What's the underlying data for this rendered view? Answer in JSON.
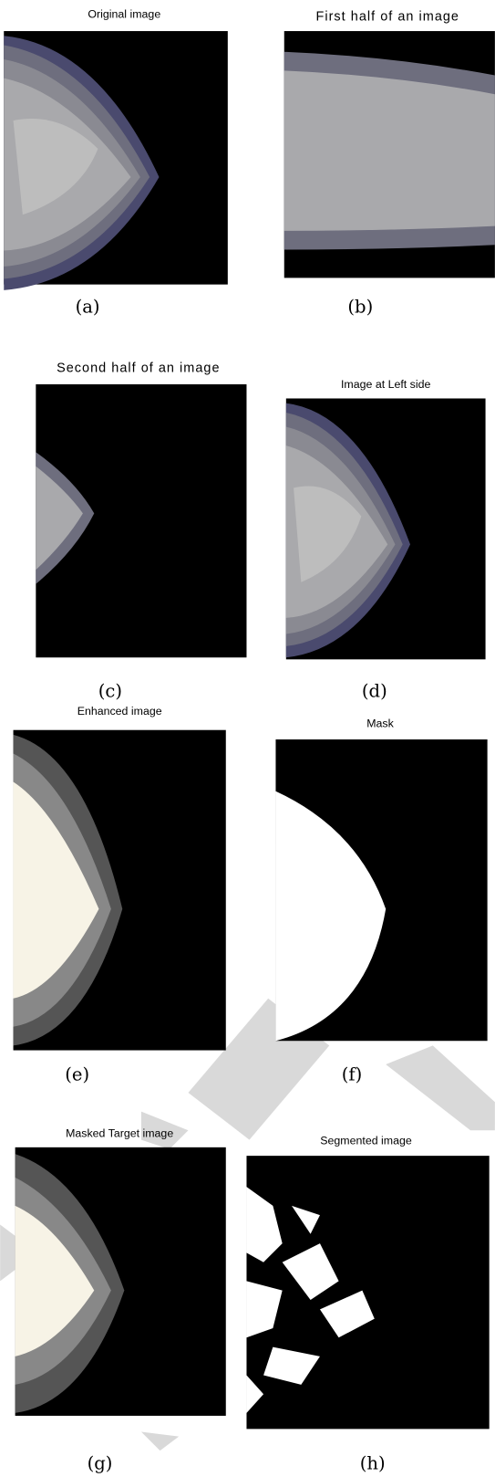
{
  "panels": [
    {
      "title": "Original image",
      "caption": "(a)"
    },
    {
      "title": "First half of an image",
      "caption": "(b)"
    },
    {
      "title": "Second half of an image",
      "caption": "(c)"
    },
    {
      "title": "Image at Left side",
      "caption": "(d)"
    },
    {
      "title": "Enhanced image",
      "caption": "(e)"
    },
    {
      "title": "Mask",
      "caption": "(f)"
    },
    {
      "title": "Masked Target image",
      "caption": "(g)"
    },
    {
      "title": "Segmented image",
      "caption": "(h)"
    }
  ]
}
